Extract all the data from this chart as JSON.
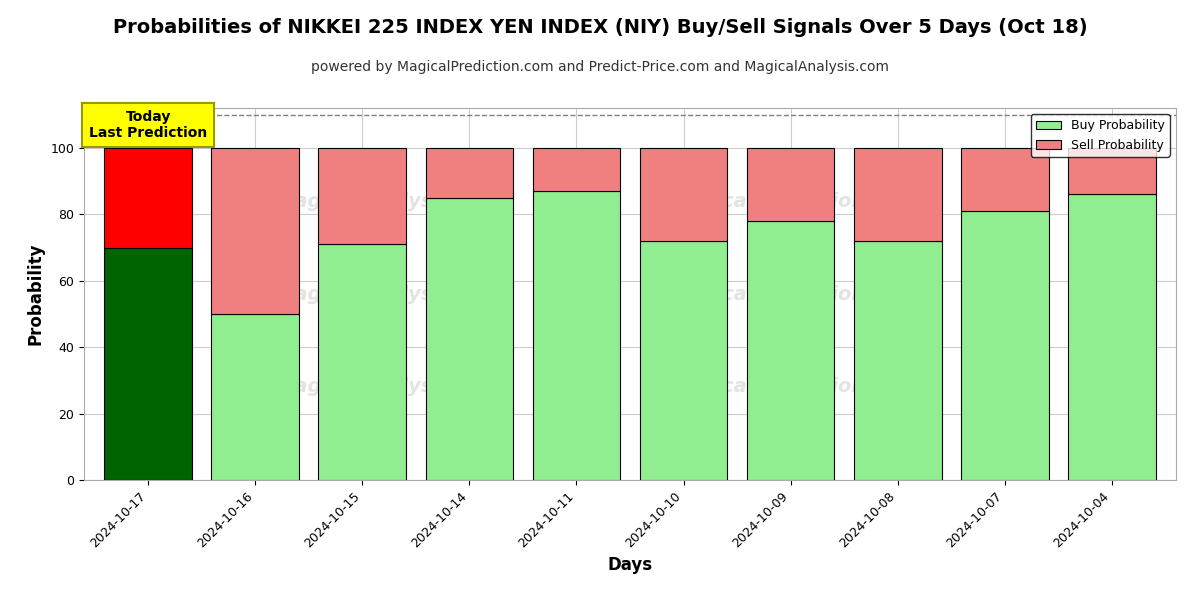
{
  "title": "Probabilities of NIKKEI 225 INDEX YEN INDEX (NIY) Buy/Sell Signals Over 5 Days (Oct 18)",
  "subtitle": "powered by MagicalPrediction.com and Predict-Price.com and MagicalAnalysis.com",
  "xlabel": "Days",
  "ylabel": "Probability",
  "dates": [
    "2024-10-17",
    "2024-10-16",
    "2024-10-15",
    "2024-10-14",
    "2024-10-11",
    "2024-10-10",
    "2024-10-09",
    "2024-10-08",
    "2024-10-07",
    "2024-10-04"
  ],
  "buy_values": [
    70,
    50,
    71,
    85,
    87,
    72,
    78,
    72,
    81,
    86
  ],
  "sell_values": [
    30,
    50,
    29,
    15,
    13,
    28,
    22,
    28,
    19,
    14
  ],
  "today_bar_index": 0,
  "today_buy_color": "#006400",
  "today_sell_color": "#FF0000",
  "other_buy_color": "#90EE90",
  "other_sell_color": "#F08080",
  "bar_edge_color": "#000000",
  "ylim": [
    0,
    112
  ],
  "dashed_line_y": 110,
  "grid_color": "#cccccc",
  "background_color": "#ffffff",
  "annotation_text": "Today\nLast Prediction",
  "annotation_bg": "#FFFF00",
  "legend_buy_label": "Buy Probability",
  "legend_sell_label": "Sell Probability",
  "title_fontsize": 14,
  "subtitle_fontsize": 10,
  "axis_label_fontsize": 12,
  "tick_fontsize": 9,
  "bar_width": 0.82
}
